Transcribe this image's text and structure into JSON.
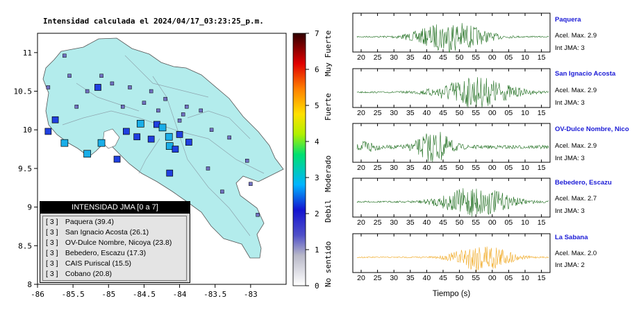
{
  "map": {
    "title": "Intensidad calculada el 2024/04/17_03:23:25_p.m.",
    "lon_ticks": [
      "-86",
      "-85.5",
      "-85",
      "-84.5",
      "-84",
      "-83.5",
      "-83"
    ],
    "lat_ticks": [
      "11",
      "10.5",
      "10",
      "9.5",
      "9",
      "8.5",
      "8"
    ],
    "xlim": [
      -86,
      -82.5
    ],
    "ylim": [
      8,
      11.25
    ],
    "sea_color": "#ffffff",
    "land_color": "#b3ecec"
  },
  "colorbar": {
    "ticks": [
      "0",
      "1",
      "2",
      "3",
      "4",
      "5",
      "6",
      "7"
    ],
    "labels": [
      "No sentido",
      "Debil",
      "Moderado",
      "Fuerte",
      "Muy Fuerte"
    ]
  },
  "legend": {
    "title": "INTENSIDAD JMA [0 a 7]",
    "entries": [
      {
        "level": "[ 3 ]",
        "name": "Paquera (39.4)"
      },
      {
        "level": "[ 3 ]",
        "name": "San Ignacio Acosta (26.1)"
      },
      {
        "level": "[ 3 ]",
        "name": "OV-Dulce Nombre, Nicoya (23.8)"
      },
      {
        "level": "[ 3 ]",
        "name": "Bebedero, Escazu (17.3)"
      },
      {
        "level": "[ 3 ]",
        "name": "CAIS Puriscal (15.5)"
      },
      {
        "level": "[ 3 ]",
        "name": "Cobano (20.8)"
      }
    ]
  },
  "seismograms": {
    "x_ticks": [
      "20",
      "25",
      "30",
      "35",
      "40",
      "45",
      "50",
      "55",
      "00",
      "05",
      "10",
      "15"
    ],
    "xlabel": "Tiempo (s)",
    "traces": [
      {
        "name": "Paquera",
        "acel": "Acel. Max. 2.9",
        "jma": "Int JMA: 3",
        "color": "#1f6e1f"
      },
      {
        "name": "San Ignacio Acosta",
        "acel": "Acel. Max. 2.9",
        "jma": "Int JMA: 3",
        "color": "#1f6e1f"
      },
      {
        "name": "OV-Dulce Nombre, Nico",
        "acel": "Acel. Max. 2.9",
        "jma": "Int JMA: 3",
        "color": "#1f6e1f"
      },
      {
        "name": "Bebedero, Escazu",
        "acel": "Acel. Max. 2.7",
        "jma": "Int JMA: 3",
        "color": "#1f6e1f"
      },
      {
        "name": "La Sabana",
        "acel": "Acel. Max. 2.0",
        "jma": "Int JMA: 2",
        "color": "#f0a820"
      }
    ]
  },
  "chart_data": [
    {
      "type": "scatter",
      "title": "Intensidad calculada el 2024/04/17_03:23:25_p.m.",
      "xlim": [
        -86,
        -82.5
      ],
      "ylim": [
        8,
        11.25
      ],
      "points": [
        {
          "lon": -85.62,
          "lat": 9.83,
          "jma": 3
        },
        {
          "lon": -85.3,
          "lat": 9.69,
          "jma": 3
        },
        {
          "lon": -85.85,
          "lat": 9.98,
          "jma": 2
        },
        {
          "lon": -84.75,
          "lat": 9.98,
          "jma": 2
        },
        {
          "lon": -84.55,
          "lat": 10.08,
          "jma": 3
        },
        {
          "lon": -84.32,
          "lat": 10.07,
          "jma": 2
        },
        {
          "lon": -84.15,
          "lat": 9.91,
          "jma": 3
        },
        {
          "lon": -84.14,
          "lat": 9.79,
          "jma": 3
        },
        {
          "lon": -84.06,
          "lat": 9.75,
          "jma": 2
        },
        {
          "lon": -84.24,
          "lat": 10.03,
          "jma": 3
        },
        {
          "lon": -83.87,
          "lat": 9.84,
          "jma": 2
        },
        {
          "lon": -84.6,
          "lat": 9.91,
          "jma": 2
        },
        {
          "lon": -84.4,
          "lat": 9.88,
          "jma": 2
        },
        {
          "lon": -84.88,
          "lat": 9.62,
          "jma": 2
        },
        {
          "lon": -84.14,
          "lat": 9.44,
          "jma": 2
        },
        {
          "lon": -85.1,
          "lat": 9.83,
          "jma": 3
        },
        {
          "lon": -85.15,
          "lat": 10.55,
          "jma": 2
        },
        {
          "lon": -85.75,
          "lat": 10.13,
          "jma": 2
        },
        {
          "lon": -84.0,
          "lat": 9.94,
          "jma": 2
        }
      ]
    },
    {
      "type": "line",
      "xlabel": "Tiempo (s)",
      "series": [
        {
          "name": "Paquera",
          "peak": 2.9,
          "jma": 3
        },
        {
          "name": "San Ignacio Acosta",
          "peak": 2.9,
          "jma": 3
        },
        {
          "name": "OV-Dulce Nombre, Nico",
          "peak": 2.9,
          "jma": 3
        },
        {
          "name": "Bebedero, Escazu",
          "peak": 2.7,
          "jma": 3
        },
        {
          "name": "La Sabana",
          "peak": 2.0,
          "jma": 2
        }
      ]
    }
  ]
}
